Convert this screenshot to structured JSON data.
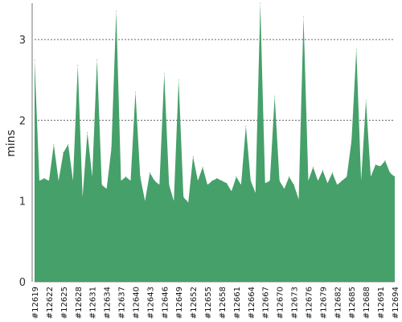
{
  "chart_data": {
    "type": "area",
    "ylabel": "mins",
    "xlabel": "",
    "title": "",
    "ylim": [
      0,
      3.45
    ],
    "yticks": [
      0,
      1,
      2,
      3
    ],
    "grid": true,
    "color": "#46a06a",
    "x": [
      "#12619",
      "#12620",
      "#12621",
      "#12622",
      "#12623",
      "#12624",
      "#12625",
      "#12626",
      "#12627",
      "#12628",
      "#12629",
      "#12630",
      "#12631",
      "#12632",
      "#12633",
      "#12634",
      "#12635",
      "#12636",
      "#12637",
      "#12638",
      "#12639",
      "#12640",
      "#12641",
      "#12642",
      "#12643",
      "#12644",
      "#12645",
      "#12646",
      "#12647",
      "#12648",
      "#12649",
      "#12650",
      "#12651",
      "#12652",
      "#12653",
      "#12654",
      "#12655",
      "#12656",
      "#12657",
      "#12658",
      "#12659",
      "#12660",
      "#12661",
      "#12662",
      "#12663",
      "#12664",
      "#12665",
      "#12666",
      "#12667",
      "#12668",
      "#12669",
      "#12670",
      "#12671",
      "#12672",
      "#12673",
      "#12674",
      "#12675",
      "#12676",
      "#12677",
      "#12678",
      "#12679",
      "#12680",
      "#12681",
      "#12682",
      "#12683",
      "#12684",
      "#12685",
      "#12686",
      "#12687",
      "#12688",
      "#12689",
      "#12690",
      "#12691",
      "#12692",
      "#12693",
      "#12694"
    ],
    "xtick_labels": [
      "#12619",
      "#12622",
      "#12625",
      "#12628",
      "#12631",
      "#12634",
      "#12637",
      "#12640",
      "#12643",
      "#12646",
      "#12649",
      "#12652",
      "#12655",
      "#12658",
      "#12661",
      "#12664",
      "#12667",
      "#12670",
      "#12673",
      "#12676",
      "#12679",
      "#12682",
      "#12685",
      "#12688",
      "#12691",
      "#12694"
    ],
    "values": [
      2.75,
      1.25,
      1.28,
      1.25,
      1.7,
      1.25,
      1.6,
      1.7,
      1.25,
      2.68,
      1.05,
      1.85,
      1.3,
      2.75,
      1.2,
      1.15,
      1.65,
      3.35,
      1.25,
      1.3,
      1.25,
      2.35,
      1.3,
      1.0,
      1.35,
      1.25,
      1.2,
      2.58,
      1.2,
      1.0,
      2.5,
      1.05,
      0.98,
      1.55,
      1.25,
      1.42,
      1.2,
      1.25,
      1.28,
      1.25,
      1.22,
      1.12,
      1.3,
      1.2,
      1.93,
      1.25,
      1.1,
      3.45,
      1.22,
      1.25,
      2.3,
      1.25,
      1.15,
      1.3,
      1.2,
      1.02,
      3.28,
      1.25,
      1.42,
      1.25,
      1.38,
      1.22,
      1.35,
      1.2,
      1.25,
      1.3,
      1.75,
      2.88,
      1.25,
      2.25,
      1.3,
      1.45,
      1.43,
      1.5,
      1.35,
      1.3
    ]
  }
}
